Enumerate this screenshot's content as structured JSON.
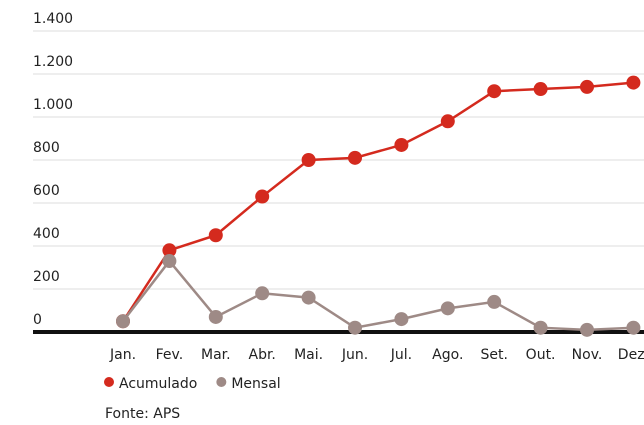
{
  "chart_data": {
    "type": "line",
    "categories": [
      "Jan.",
      "Fev.",
      "Mar.",
      "Abr.",
      "Mai.",
      "Jun.",
      "Jul.",
      "Ago.",
      "Set.",
      "Out.",
      "Nov.",
      "Dez."
    ],
    "series": [
      {
        "name": "Acumulado",
        "color": "#d42a1e",
        "values": [
          50,
          380,
          450,
          630,
          800,
          810,
          870,
          980,
          1120,
          1130,
          1140,
          1160
        ]
      },
      {
        "name": "Mensal",
        "color": "#9e8a86",
        "values": [
          50,
          330,
          70,
          180,
          160,
          20,
          60,
          110,
          140,
          20,
          10,
          20
        ]
      }
    ],
    "ylim": [
      0,
      1400
    ],
    "yticks": [
      0,
      200,
      400,
      600,
      800,
      {
        "value": 1000,
        "label": "1.000"
      },
      {
        "value": 1200,
        "label": "1.200"
      },
      {
        "value": 1400,
        "label": "1.400"
      }
    ],
    "grid": true,
    "source": "Fonte: APS"
  }
}
